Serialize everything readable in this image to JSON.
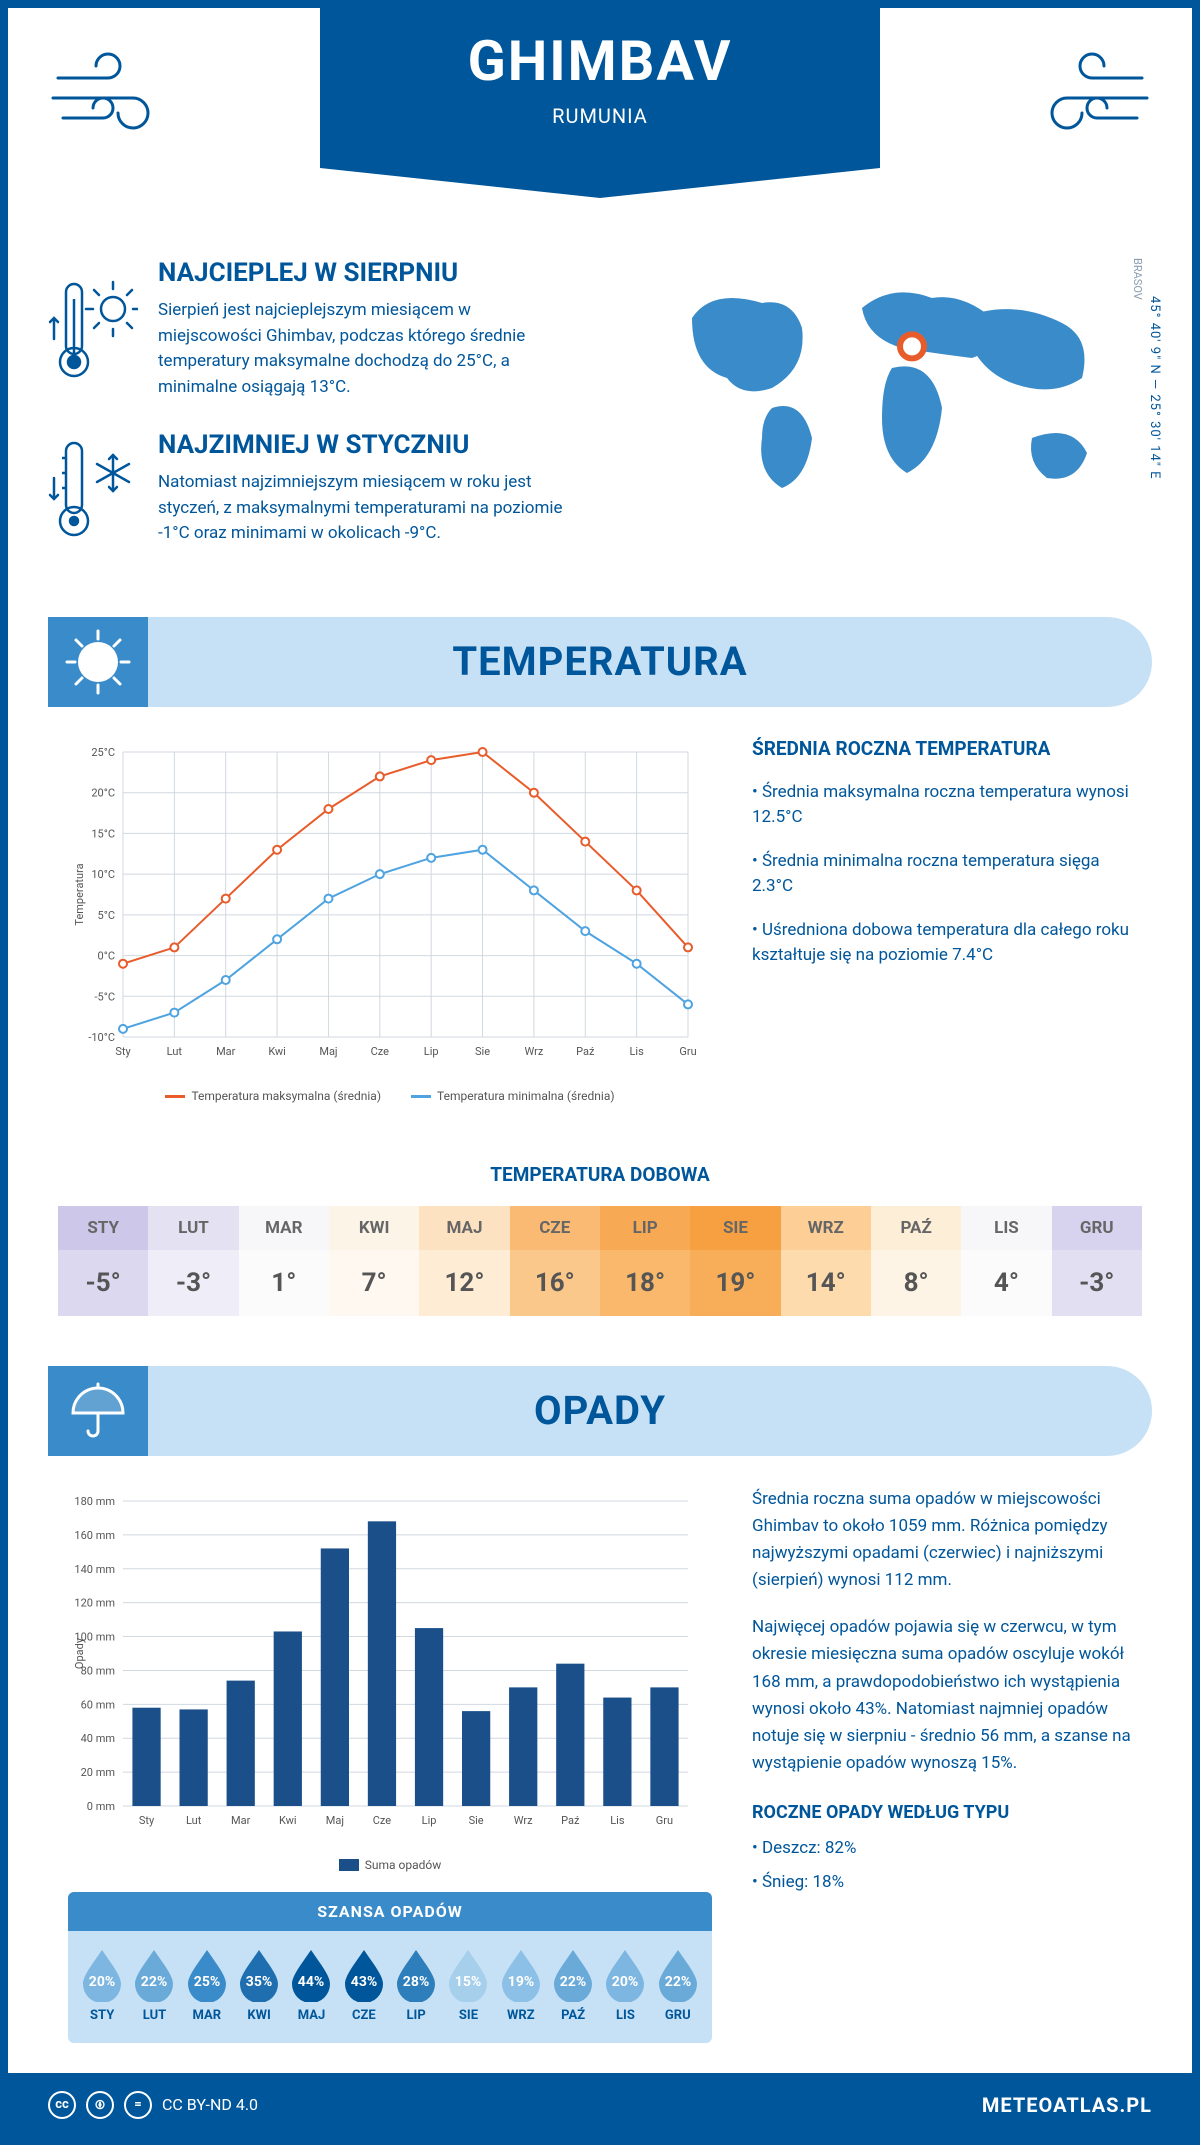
{
  "header": {
    "city": "GHIMBAV",
    "country": "RUMUNIA"
  },
  "coords": "45° 40' 9\" N — 25° 30' 14\" E",
  "region": "BRASOV",
  "map": {
    "marker_x": 0.56,
    "marker_y": 0.34
  },
  "colors": {
    "primary": "#00569a",
    "light": "#c6e1f6",
    "mid": "#3a8bc9",
    "line_max": "#e85c2b",
    "line_min": "#4ea3e0",
    "bar": "#1a4f8a"
  },
  "facts": {
    "hottest": {
      "title": "NAJCIEPLEJ W SIERPNIU",
      "text": "Sierpień jest najcieplejszym miesiącem w miejscowości Ghimbav, podczas którego średnie temperatury maksymalne dochodzą do 25°C, a minimalne osiągają 13°C."
    },
    "coldest": {
      "title": "NAJZIMNIEJ W STYCZNIU",
      "text": "Natomiast najzimniejszym miesiącem w roku jest styczeń, z maksymalnymi temperaturami na poziomie -1°C oraz minimami w okolicach -9°C."
    }
  },
  "sections": {
    "temperature": "TEMPERATURA",
    "precipitation": "OPADY"
  },
  "months_short": [
    "Sty",
    "Lut",
    "Mar",
    "Kwi",
    "Maj",
    "Cze",
    "Lip",
    "Sie",
    "Wrz",
    "Paź",
    "Lis",
    "Gru"
  ],
  "months_upper": [
    "STY",
    "LUT",
    "MAR",
    "KWI",
    "MAJ",
    "CZE",
    "LIP",
    "SIE",
    "WRZ",
    "PAŹ",
    "LIS",
    "GRU"
  ],
  "temp_chart": {
    "y_label": "Temperatura",
    "y_min": -10,
    "y_max": 25,
    "y_step": 5,
    "grid_color": "#d0d8e0",
    "max_series": [
      -1,
      1,
      7,
      13,
      18,
      22,
      24,
      25,
      20,
      14,
      8,
      1
    ],
    "min_series": [
      -9,
      -7,
      -3,
      2,
      7,
      10,
      12,
      13,
      8,
      3,
      -1,
      -6
    ],
    "legend_max": "Temperatura maksymalna (średnia)",
    "legend_min": "Temperatura minimalna (średnia)"
  },
  "temp_info": {
    "heading": "ŚREDNIA ROCZNA TEMPERATURA",
    "bullets": [
      "Średnia maksymalna roczna temperatura wynosi 12.5°C",
      "Średnia minimalna roczna temperatura sięga 2.3°C",
      "Uśredniona dobowa temperatura dla całego roku kształtuje się na poziomie 7.4°C"
    ]
  },
  "daily": {
    "title": "TEMPERATURA DOBOWA",
    "values": [
      "-5°",
      "-3°",
      "1°",
      "7°",
      "12°",
      "16°",
      "18°",
      "19°",
      "14°",
      "8°",
      "4°",
      "-3°"
    ],
    "bg_head": [
      "#cdc8ea",
      "#e4e1f2",
      "#f7f7fa",
      "#fdf4e8",
      "#fde2c1",
      "#faba73",
      "#f8a954",
      "#f7a042",
      "#fdcf97",
      "#fdeed7",
      "#f7f7fa",
      "#d7d2ee"
    ],
    "bg_val": [
      "#dcd8f0",
      "#efedf7",
      "#fbfbfc",
      "#fef8f0",
      "#feecd4",
      "#fbc88b",
      "#f9b86c",
      "#f8ae59",
      "#fddbad",
      "#fef4e5",
      "#fbfbfc",
      "#e3dff2"
    ]
  },
  "opady_chart": {
    "y_label": "Opady",
    "y_max": 180,
    "y_step": 20,
    "values": [
      58,
      57,
      74,
      103,
      152,
      168,
      105,
      56,
      70,
      84,
      64,
      70
    ],
    "legend": "Suma opadów"
  },
  "opady_text": {
    "p1": "Średnia roczna suma opadów w miejscowości Ghimbav to około 1059 mm. Różnica pomiędzy najwyższymi opadami (czerwiec) i najniższymi (sierpień) wynosi 112 mm.",
    "p2": "Najwięcej opadów pojawia się w czerwcu, w tym okresie miesięczna suma opadów oscyluje wokół 168 mm, a prawdopodobieństwo ich wystąpienia wynosi około 43%. Natomiast najmniej opadów notuje się w sierpniu - średnio 56 mm, a szanse na wystąpienie opadów wynoszą 15%.",
    "type_heading": "ROCZNE OPADY WEDŁUG TYPU",
    "type_bullets": [
      "Deszcz: 82%",
      "Śnieg: 18%"
    ]
  },
  "chance": {
    "title": "SZANSA OPADÓW",
    "values": [
      20,
      22,
      25,
      35,
      44,
      43,
      28,
      15,
      19,
      22,
      20,
      22
    ],
    "colors": [
      "#7db6e0",
      "#6aaad9",
      "#3a8bc9",
      "#1f6fb0",
      "#00569a",
      "#00569a",
      "#2d7ebb",
      "#a6cfec",
      "#8cc0e6",
      "#6aaad9",
      "#7db6e0",
      "#6aaad9"
    ]
  },
  "footer": {
    "license": "CC BY-ND 4.0",
    "site": "METEOATLAS.PL"
  }
}
